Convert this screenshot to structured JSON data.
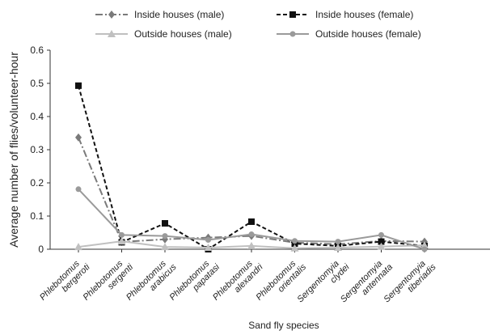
{
  "chart_data": {
    "type": "line",
    "xlabel": "Sand fly species",
    "ylabel": "Average number of flies/volunteer-hour",
    "ylim": [
      0,
      0.6
    ],
    "yticks": [
      "0",
      "0.1",
      "0.2",
      "0.3",
      "0.4",
      "0.5",
      "0.6"
    ],
    "grid": false,
    "legend_position": "top",
    "categories": [
      [
        "Phlebotomus",
        "bergeroti"
      ],
      [
        "Phlebotomus",
        "sergenti"
      ],
      [
        "Phlebotomus",
        "arabicus"
      ],
      [
        "Phlebotomus",
        "papatasi"
      ],
      [
        "Phlebotomus",
        "alexandri"
      ],
      [
        "Phlebotomus",
        "orientalis"
      ],
      [
        "Sergentomyia",
        "clydei"
      ],
      [
        "Sergentomyia",
        "antennata"
      ],
      [
        "Sergentomyia",
        "tiberiadis"
      ]
    ],
    "series": [
      {
        "name": "Inside houses (male)",
        "color": "#7a7a7a",
        "dash": "9,3,2,3",
        "marker": "diamond",
        "values": [
          0.337,
          0.022,
          0.03,
          0.035,
          0.04,
          0.02,
          0.015,
          0.025,
          0.023
        ]
      },
      {
        "name": "Inside houses (female)",
        "color": "#111111",
        "dash": "5,3",
        "marker": "square",
        "values": [
          0.493,
          0.021,
          0.078,
          0.0,
          0.083,
          0.017,
          0.01,
          0.023,
          0.01
        ]
      },
      {
        "name": "Outside houses (male)",
        "color": "#c0c0c0",
        "dash": "",
        "marker": "triangle",
        "values": [
          0.007,
          0.024,
          0.007,
          0.005,
          0.01,
          0.003,
          0.005,
          0.008,
          0.012
        ]
      },
      {
        "name": "Outside houses (female)",
        "color": "#9a9a9a",
        "dash": "",
        "marker": "circle",
        "values": [
          0.181,
          0.043,
          0.04,
          0.028,
          0.045,
          0.025,
          0.023,
          0.043,
          0.0
        ]
      }
    ]
  }
}
